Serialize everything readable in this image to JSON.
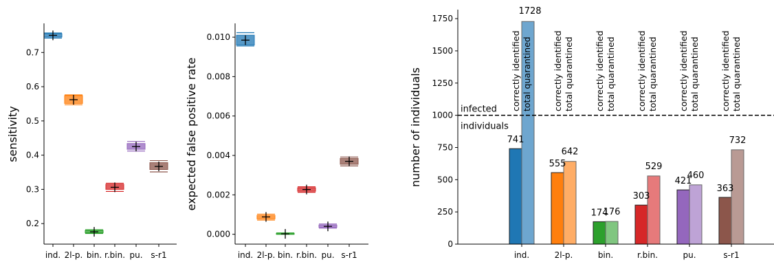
{
  "categories": [
    "ind.",
    "2l-p.",
    "bin.",
    "r.bin.",
    "pu.",
    "s-r1"
  ],
  "colors": {
    "dark": [
      "#1f77b4",
      "#ff7f0e",
      "#2ca02c",
      "#d62728",
      "#9467bd",
      "#8c564b"
    ],
    "light": [
      "#6ea6cf",
      "#ffad66",
      "#80c680",
      "#e67a7b",
      "#bea3d6",
      "#b99a94"
    ]
  },
  "chart_data": [
    {
      "type": "box",
      "ylabel": "sensitivity",
      "ylim": [
        0.14,
        0.785
      ],
      "yticks": [
        0.2,
        0.3,
        0.4,
        0.5,
        0.6,
        0.7
      ],
      "ytick_labels": [
        "0.2",
        "0.3",
        "0.4",
        "0.5",
        "0.6",
        "0.7"
      ],
      "categories": [
        "ind.",
        "2l-p.",
        "bin.",
        "r.bin.",
        "pu.",
        "s-r1"
      ],
      "median": [
        0.75,
        0.562,
        0.176,
        0.306,
        0.425,
        0.367
      ],
      "q1": [
        0.745,
        0.551,
        0.173,
        0.3,
        0.417,
        0.358
      ],
      "q3": [
        0.755,
        0.574,
        0.18,
        0.315,
        0.434,
        0.378
      ],
      "lo": [
        0.742,
        0.547,
        0.171,
        0.294,
        0.412,
        0.351
      ],
      "hi": [
        0.757,
        0.576,
        0.182,
        0.318,
        0.44,
        0.384
      ]
    },
    {
      "type": "box",
      "ylabel": "expected false positive rate",
      "ylim": [
        -0.0005,
        0.0107
      ],
      "yticks": [
        0.0,
        0.002,
        0.004,
        0.006,
        0.008,
        0.01
      ],
      "ytick_labels": [
        "0.000",
        "0.002",
        "0.004",
        "0.006",
        "0.008",
        "0.010"
      ],
      "categories": [
        "ind.",
        "2l-p.",
        "bin.",
        "r.bin.",
        "pu.",
        "s-r1"
      ],
      "median": [
        0.00985,
        0.00088,
        2e-05,
        0.00227,
        0.0004,
        0.0037
      ],
      "q1": [
        0.0096,
        0.00078,
        0.0,
        0.00218,
        0.00035,
        0.00355
      ],
      "q3": [
        0.0101,
        0.00096,
        5e-05,
        0.00236,
        0.00047,
        0.00385
      ],
      "lo": [
        0.00955,
        0.00072,
        0.0,
        0.00213,
        0.00031,
        0.00347
      ],
      "hi": [
        0.01023,
        0.00102,
        7e-05,
        0.00241,
        0.00052,
        0.00392
      ]
    },
    {
      "type": "bar",
      "ylabel": "number of individuals",
      "ylim": [
        0,
        1820
      ],
      "yticks": [
        0,
        250,
        500,
        750,
        1000,
        1250,
        1500,
        1750
      ],
      "ytick_labels": [
        "0",
        "250",
        "500",
        "750",
        "1000",
        "1250",
        "1500",
        "1750"
      ],
      "categories": [
        "ind.",
        "2l-p.",
        "bin.",
        "r.bin.",
        "pu.",
        "s-r1"
      ],
      "series": [
        {
          "name": "correctly identified",
          "values": [
            741,
            555,
            174,
            303,
            421,
            363
          ]
        },
        {
          "name": "total quarantined",
          "values": [
            1728,
            642,
            176,
            529,
            460,
            732
          ]
        }
      ],
      "value_labels_correct": [
        "741",
        "555",
        "174",
        "303",
        "421",
        "363"
      ],
      "value_labels_total": [
        "1728",
        "642",
        "176",
        "529",
        "460",
        "732"
      ],
      "reference_line": {
        "value": 1000,
        "label_top": "infected",
        "label_bottom": "individuals"
      }
    }
  ]
}
